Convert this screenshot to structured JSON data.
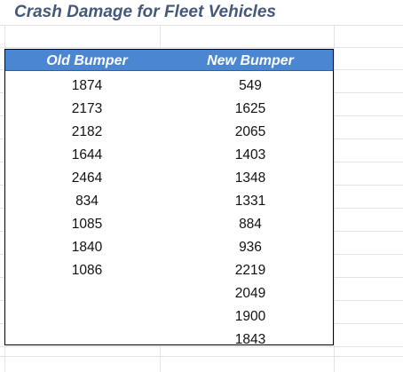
{
  "sheet": {
    "title": "Crash Damage for Fleet Vehicles"
  },
  "table": {
    "headers": [
      "Old Bumper",
      "New Bumper"
    ],
    "old_bumper": [
      "1874",
      "2173",
      "2182",
      "1644",
      "2464",
      "834",
      "1085",
      "1840",
      "1086"
    ],
    "new_bumper": [
      "549",
      "1625",
      "2065",
      "1403",
      "1348",
      "1331",
      "884",
      "936",
      "2219",
      "2049",
      "1900",
      "1843"
    ]
  },
  "colors": {
    "title": "#44587a",
    "header_fill": "#4a86d2",
    "header_text": "#ffffff",
    "gridline": "#e3e3e3"
  }
}
